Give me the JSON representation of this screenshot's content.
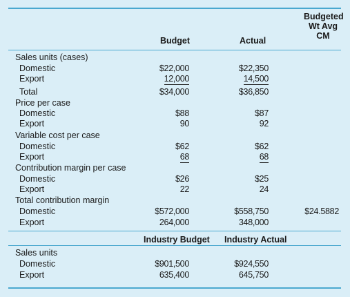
{
  "headers": {
    "budget": "Budget",
    "actual": "Actual",
    "budgeted_wt_avg_cm_line1": "Budgeted",
    "budgeted_wt_avg_cm_line2": "Wt Avg",
    "budgeted_wt_avg_cm_line3": "CM"
  },
  "sales_units": {
    "label": "Sales units (cases)",
    "domestic": {
      "label": "Domestic",
      "budget": "$22,000",
      "actual": "$22,350"
    },
    "export": {
      "label": "Export",
      "budget": "12,000",
      "actual": "14,500"
    },
    "total": {
      "label": "Total",
      "budget": "$34,000",
      "actual": "$36,850"
    }
  },
  "price_per_case": {
    "label": "Price per case",
    "domestic": {
      "label": "Domestic",
      "budget": "$88",
      "actual": "$87"
    },
    "export": {
      "label": "Export",
      "budget": "90",
      "actual": "92"
    }
  },
  "variable_cost": {
    "label": "Variable cost per case",
    "domestic": {
      "label": "Domestic",
      "budget": "$62",
      "actual": "$62"
    },
    "export": {
      "label": "Export",
      "budget": "68",
      "actual": "68"
    }
  },
  "cm_per_case": {
    "label": "Contribution margin per case",
    "domestic": {
      "label": "Domestic",
      "budget": "$26",
      "actual": "$25"
    },
    "export": {
      "label": "Export",
      "budget": "22",
      "actual": "24"
    }
  },
  "total_cm": {
    "label": "Total contribution margin",
    "domestic": {
      "label": "Domestic",
      "budget": "$572,000",
      "actual": "$558,750",
      "wt_avg": "$24.5882"
    },
    "export": {
      "label": "Export",
      "budget": "264,000",
      "actual": "348,000"
    }
  },
  "industry_headers": {
    "budget": "Industry Budget",
    "actual": "Industry Actual"
  },
  "industry_sales": {
    "label": "Sales units",
    "domestic": {
      "label": "Domestic",
      "budget": "$901,500",
      "actual": "$924,550"
    },
    "export": {
      "label": "Export",
      "budget": "635,400",
      "actual": "645,750"
    }
  },
  "colors": {
    "background": "#daeef7",
    "rule": "#4aa8cf"
  }
}
